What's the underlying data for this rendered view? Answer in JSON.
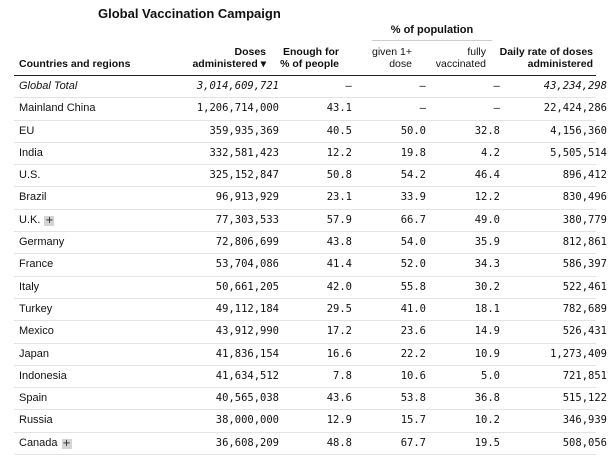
{
  "title": "Global Vaccination Campaign",
  "group_header": "% of population",
  "headers": {
    "country": "Countries and regions",
    "doses_line1": "Doses",
    "doses_line2": "administered ▾",
    "enough_line1": "Enough for",
    "enough_line2": "% of people",
    "given_line1": "given 1+",
    "given_line2": "dose",
    "fully_line1": "fully",
    "fully_line2": "vaccinated",
    "daily_line1": "Daily rate of doses",
    "daily_line2": "administered"
  },
  "expand_symbol": "+",
  "rows": [
    {
      "country": "Global Total",
      "doses": "3,014,609,721",
      "enough": "–",
      "given": "–",
      "fully": "–",
      "daily": "43,234,298",
      "total": true
    },
    {
      "country": "Mainland China",
      "doses": "1,206,714,000",
      "enough": "43.1",
      "given": "–",
      "fully": "–",
      "daily": "22,424,286"
    },
    {
      "country": "EU",
      "doses": "359,935,369",
      "enough": "40.5",
      "given": "50.0",
      "fully": "32.8",
      "daily": "4,156,360"
    },
    {
      "country": "India",
      "doses": "332,581,423",
      "enough": "12.2",
      "given": "19.8",
      "fully": "4.2",
      "daily": "5,505,514"
    },
    {
      "country": "U.S.",
      "doses": "325,152,847",
      "enough": "50.8",
      "given": "54.2",
      "fully": "46.4",
      "daily": "896,412"
    },
    {
      "country": "Brazil",
      "doses": "96,913,929",
      "enough": "23.1",
      "given": "33.9",
      "fully": "12.2",
      "daily": "830,496"
    },
    {
      "country": "U.K.",
      "doses": "77,303,533",
      "enough": "57.9",
      "given": "66.7",
      "fully": "49.0",
      "daily": "380,779",
      "expandable": true
    },
    {
      "country": "Germany",
      "doses": "72,806,699",
      "enough": "43.8",
      "given": "54.0",
      "fully": "35.9",
      "daily": "812,861"
    },
    {
      "country": "France",
      "doses": "53,704,086",
      "enough": "41.4",
      "given": "52.0",
      "fully": "34.3",
      "daily": "586,397"
    },
    {
      "country": "Italy",
      "doses": "50,661,205",
      "enough": "42.0",
      "given": "55.8",
      "fully": "30.2",
      "daily": "522,461"
    },
    {
      "country": "Turkey",
      "doses": "49,112,184",
      "enough": "29.5",
      "given": "41.0",
      "fully": "18.1",
      "daily": "782,689"
    },
    {
      "country": "Mexico",
      "doses": "43,912,990",
      "enough": "17.2",
      "given": "23.6",
      "fully": "14.9",
      "daily": "526,431"
    },
    {
      "country": "Japan",
      "doses": "41,836,154",
      "enough": "16.6",
      "given": "22.2",
      "fully": "10.9",
      "daily": "1,273,409"
    },
    {
      "country": "Indonesia",
      "doses": "41,634,512",
      "enough": "7.8",
      "given": "10.6",
      "fully": "5.0",
      "daily": "721,851"
    },
    {
      "country": "Spain",
      "doses": "40,565,038",
      "enough": "43.6",
      "given": "53.8",
      "fully": "36.8",
      "daily": "515,122"
    },
    {
      "country": "Russia",
      "doses": "38,000,000",
      "enough": "12.9",
      "given": "15.7",
      "fully": "10.2",
      "daily": "346,939"
    },
    {
      "country": "Canada",
      "doses": "36,608,209",
      "enough": "48.8",
      "given": "67.7",
      "fully": "19.5",
      "daily": "508,056",
      "expandable": true
    }
  ]
}
